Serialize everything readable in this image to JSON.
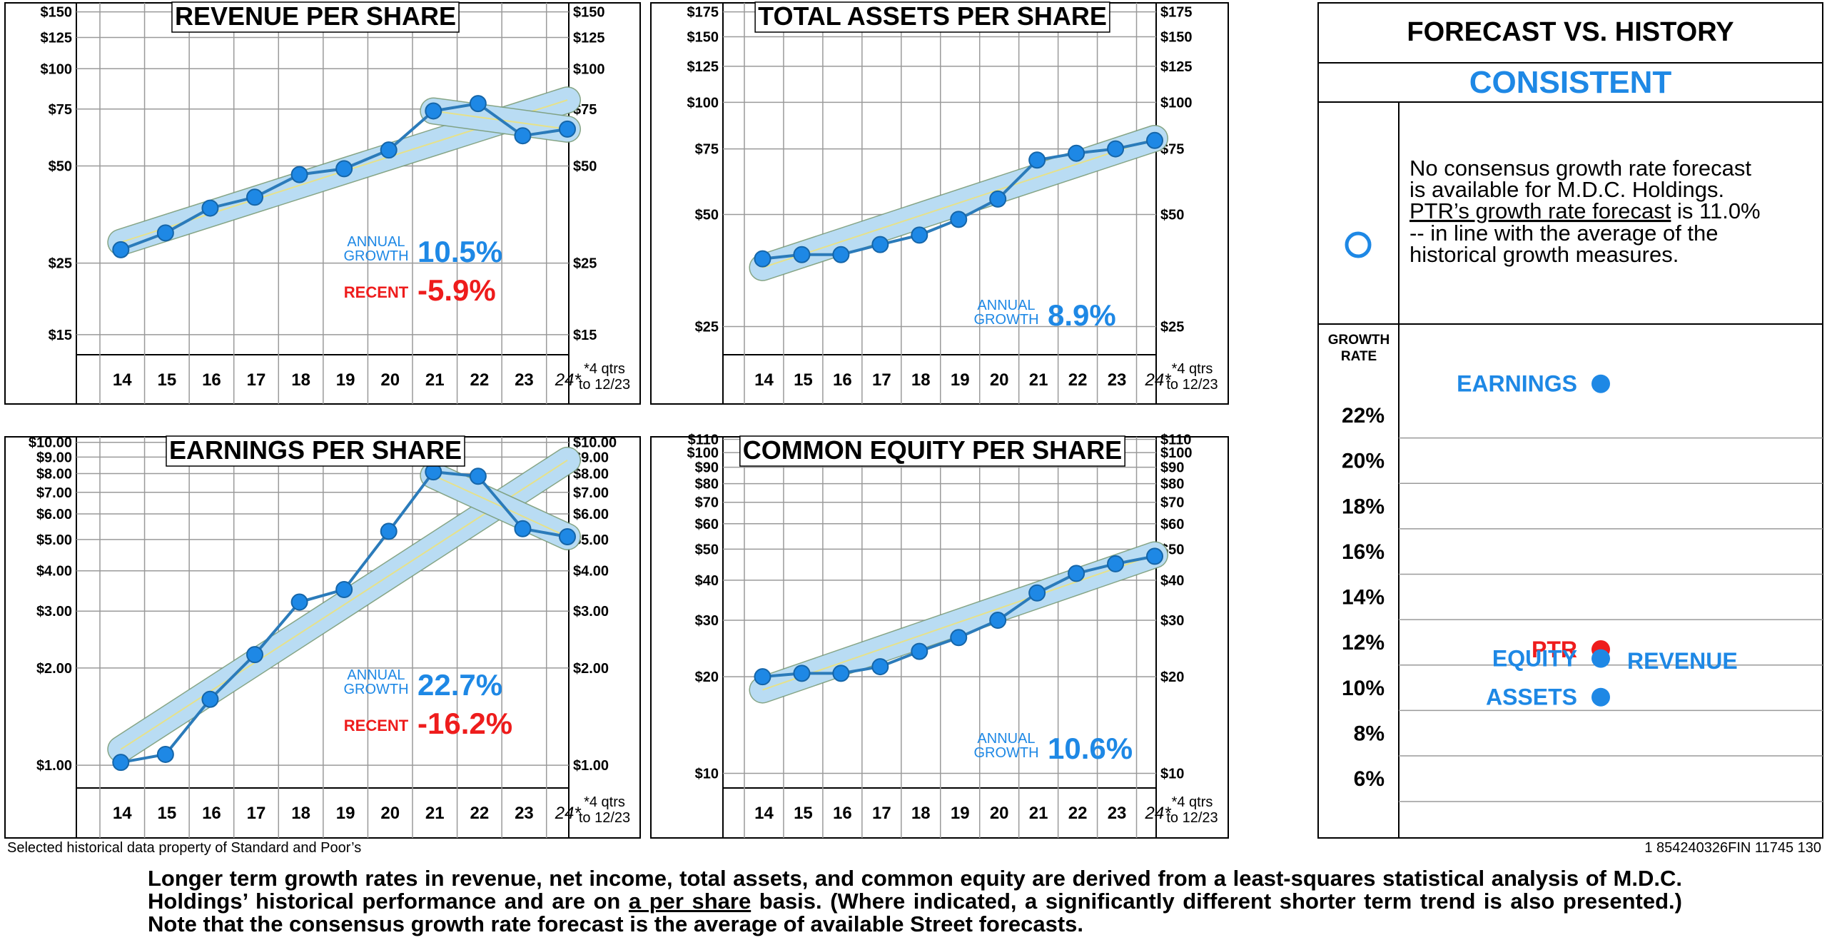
{
  "colors": {
    "accent_blue": "#1e88e5",
    "recent_red": "#ee1c1c",
    "line_blue": "#2b7bba",
    "band_fill": "#b9dcf3",
    "trend_line": "#e6e18a",
    "grid": "#9a9a9a"
  },
  "chart_data": [
    {
      "id": "revenue",
      "type": "line",
      "title": "REVENUE PER SHARE",
      "scale": "log",
      "ylim": [
        13,
        160
      ],
      "yticks": [
        {
          "v": 150,
          "l": "$150"
        },
        {
          "v": 125,
          "l": "$125"
        },
        {
          "v": 100,
          "l": "$100"
        },
        {
          "v": 75,
          "l": "$75"
        },
        {
          "v": 50,
          "l": "$50"
        },
        {
          "v": 25,
          "l": "$25"
        },
        {
          "v": 15,
          "l": "$15"
        }
      ],
      "x": [
        "14",
        "15",
        "16",
        "17",
        "18",
        "19",
        "20",
        "21",
        "22",
        "23",
        "24*"
      ],
      "x_note": [
        "*4 qtrs",
        "to 12/23"
      ],
      "values": [
        27.5,
        31,
        37,
        40,
        47,
        49,
        56,
        74,
        78,
        62,
        65
      ],
      "trend": [
        29,
        80
      ],
      "trend_style": "band",
      "recent": [
        74,
        65
      ],
      "growth_label": [
        "ANNUAL",
        "GROWTH"
      ],
      "growth_value": "10.5%",
      "recent_label": "RECENT",
      "recent_value": "-5.9%"
    },
    {
      "id": "assets",
      "type": "line",
      "title": "TOTAL ASSETS PER SHARE",
      "scale": "log",
      "ylim": [
        21,
        185
      ],
      "yticks": [
        {
          "v": 175,
          "l": "$175"
        },
        {
          "v": 150,
          "l": "$150"
        },
        {
          "v": 125,
          "l": "$125"
        },
        {
          "v": 100,
          "l": "$100"
        },
        {
          "v": 75,
          "l": "$75"
        },
        {
          "v": 50,
          "l": "$50"
        },
        {
          "v": 25,
          "l": "$25"
        }
      ],
      "x": [
        "14",
        "15",
        "16",
        "17",
        "18",
        "19",
        "20",
        "21",
        "22",
        "23",
        "24*"
      ],
      "x_note": [
        "*4 qtrs",
        "to 12/23"
      ],
      "values": [
        38,
        39,
        39,
        41.5,
        44,
        48.5,
        55,
        70,
        73,
        75,
        79
      ],
      "trend": [
        36,
        80
      ],
      "trend_style": "band",
      "growth_label": [
        "ANNUAL",
        "GROWTH"
      ],
      "growth_value": "8.9%"
    },
    {
      "id": "earnings",
      "type": "line",
      "title": "EARNINGS PER SHARE",
      "scale": "log",
      "ylim": [
        0.85,
        10.4
      ],
      "yticks": [
        {
          "v": 10,
          "l": "$10.00"
        },
        {
          "v": 9,
          "l": "$9.00"
        },
        {
          "v": 8,
          "l": "$8.00"
        },
        {
          "v": 7,
          "l": "$7.00"
        },
        {
          "v": 6,
          "l": "$6.00"
        },
        {
          "v": 5,
          "l": "$5.00"
        },
        {
          "v": 4,
          "l": "$4.00"
        },
        {
          "v": 3,
          "l": "$3.00"
        },
        {
          "v": 2,
          "l": "$2.00"
        },
        {
          "v": 1,
          "l": "$1.00"
        }
      ],
      "x": [
        "14",
        "15",
        "16",
        "17",
        "18",
        "19",
        "20",
        "21",
        "22",
        "23",
        "24*"
      ],
      "x_note": [
        "*4 qtrs",
        "to 12/23"
      ],
      "values": [
        1.02,
        1.08,
        1.6,
        2.2,
        3.2,
        3.5,
        5.3,
        8.1,
        7.85,
        5.4,
        5.1
      ],
      "trend": [
        1.12,
        8.8
      ],
      "trend_style": "band",
      "recent": [
        7.9,
        5.1
      ],
      "growth_label": [
        "ANNUAL",
        "GROWTH"
      ],
      "growth_value": "22.7%",
      "recent_label": "RECENT",
      "recent_value": "-16.2%"
    },
    {
      "id": "equity",
      "type": "line",
      "title": "COMMON EQUITY PER SHARE",
      "scale": "log",
      "ylim": [
        9,
        112
      ],
      "yticks": [
        {
          "v": 110,
          "l": "$110"
        },
        {
          "v": 100,
          "l": "$100"
        },
        {
          "v": 90,
          "l": "$90"
        },
        {
          "v": 80,
          "l": "$80"
        },
        {
          "v": 70,
          "l": "$70"
        },
        {
          "v": 60,
          "l": "$60"
        },
        {
          "v": 50,
          "l": "$50"
        },
        {
          "v": 40,
          "l": "$40"
        },
        {
          "v": 30,
          "l": "$30"
        },
        {
          "v": 20,
          "l": "$20"
        },
        {
          "v": 10,
          "l": "$10"
        }
      ],
      "x": [
        "14",
        "15",
        "16",
        "17",
        "18",
        "19",
        "20",
        "21",
        "22",
        "23",
        "24*"
      ],
      "x_note": [
        "*4 qtrs",
        "to 12/23"
      ],
      "values": [
        20,
        20.5,
        20.5,
        21.5,
        24,
        26.5,
        30,
        36.5,
        42,
        45,
        47.5
      ],
      "trend": [
        18.2,
        48
      ],
      "trend_style": "band",
      "growth_label": [
        "ANNUAL",
        "GROWTH"
      ],
      "growth_value": "10.6%"
    },
    {
      "id": "forecast",
      "type": "scatter",
      "title": "FORECAST VS. HISTORY",
      "verdict": "CONSISTENT",
      "description": "No consensus growth rate forecast is available for M.D.C. Holdings. PTR’s growth rate forecast is 11.0% -- in line with the average of the historical growth measures.",
      "desc_lines": [
        "No consensus growth rate forecast",
        "is available for M.D.C. Holdings.",
        "PTR’s growth rate forecast",
        "is 11.0%",
        "--  in line with the average of the",
        "historical growth measures."
      ],
      "axis_label": [
        "GROWTH",
        "RATE"
      ],
      "ylim": [
        4,
        24
      ],
      "yticks": [
        {
          "v": 22,
          "l": "22%"
        },
        {
          "v": 20,
          "l": "20%"
        },
        {
          "v": 18,
          "l": "18%"
        },
        {
          "v": 16,
          "l": "16%"
        },
        {
          "v": 14,
          "l": "14%"
        },
        {
          "v": 12,
          "l": "12%"
        },
        {
          "v": 10,
          "l": "10%"
        },
        {
          "v": 8,
          "l": "8%"
        },
        {
          "v": 6,
          "l": "6%"
        }
      ],
      "points": [
        {
          "name": "EARNINGS",
          "value": 22.7,
          "color": "blue",
          "label_side": "left"
        },
        {
          "name": "PTR",
          "value": 11.0,
          "color": "red",
          "label_side": "left"
        },
        {
          "name": "EQUITY",
          "value": 10.6,
          "color": "blue",
          "label_side": "left"
        },
        {
          "name": "REVENUE",
          "value": 10.5,
          "color": "blue",
          "label_side": "right"
        },
        {
          "name": "ASSETS",
          "value": 8.9,
          "color": "blue",
          "label_side": "left"
        }
      ]
    }
  ],
  "source_note": "Selected historical data property of Standard and Poor’s",
  "code_note": "1 854240326FIN 11745 130",
  "footer": {
    "part1": "Longer term growth rates in revenue, net income, total assets, and common equity are derived from a least-squares  statistical analysis of M.D.C. Holdings’ historical performance and are on ",
    "underlined": "a per share",
    "part2": " basis. (Where indicated, a significantly different shorter term trend is also presented.) Note that the consensus growth rate forecast is the average of available Street forecasts."
  }
}
